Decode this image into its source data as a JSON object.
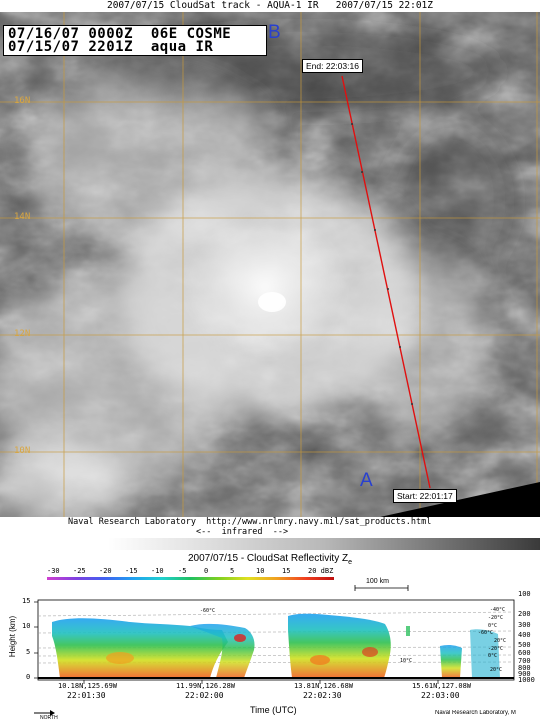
{
  "satellite_image": {
    "title": "2007/07/15 CloudSat track - AQUA-1 IR   2007/07/15 22:01Z",
    "header_line1": "07/16/07 0000Z  06E COSME",
    "header_line2": "07/15/07 2201Z  aqua IR",
    "lat_labels": [
      "16N",
      "14N",
      "12N",
      "10N"
    ],
    "marker_a": "A",
    "marker_b": "B",
    "end_label": "End: 22:03:16",
    "start_label": "Start: 22:01:17",
    "credit_line1": "Naval Research Laboratory  http://www.nrlmry.navy.mil/sat_products.html",
    "credit_line2": "<--  infrared  -->",
    "colors": {
      "track": "#e01010",
      "grid": "#c89a3a",
      "marker": "#2840d0"
    }
  },
  "reflectivity_panel": {
    "title": "2007/07/15 - CloudSat Reflectivity Z",
    "title_subscript": "e",
    "colorbar_ticks": [
      "-30",
      "-25",
      "-20",
      "-15",
      "-10",
      "-5",
      "0",
      "5",
      "10",
      "15",
      "20 dBZ"
    ],
    "scale_label": "100 km",
    "ylabel": "Height (km)",
    "y_ticks": [
      "15",
      "10",
      "5",
      "0"
    ],
    "right_ticks": [
      "100",
      "200",
      "300",
      "400",
      "500",
      "600",
      "700",
      "800",
      "900",
      "1000"
    ],
    "temp_labels": [
      "-60°C",
      "-40°C",
      "-20°C",
      "0°C",
      "-60°C",
      "20°C",
      "-20°C",
      "0°C",
      "10°C",
      "20°C"
    ],
    "location_labels": [
      "10.18N,125.69W",
      "11.99N,126.28W",
      "13.81N,126.68W",
      "15.61N,127.08W"
    ],
    "time_labels": [
      "22:01:30",
      "22:02:00",
      "22:02:30",
      "22:03:00"
    ],
    "xlabel": "Time (UTC)",
    "north_label": "NORTH",
    "credit": "Naval Research Laboratory, M"
  }
}
